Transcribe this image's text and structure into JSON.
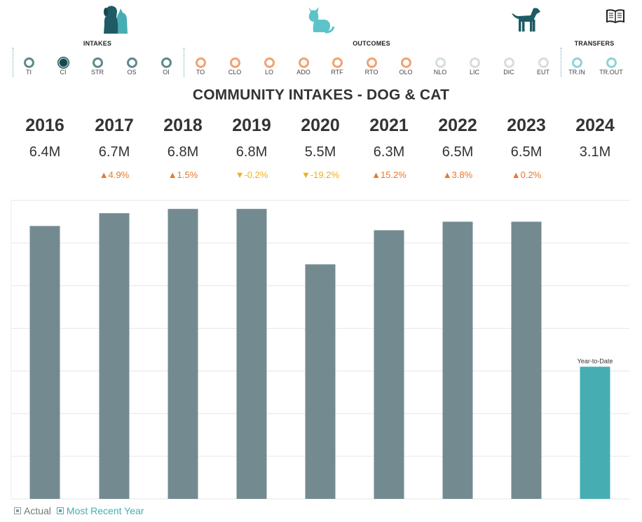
{
  "header": {
    "icons": [
      {
        "name": "dog-cat-icon"
      },
      {
        "name": "cat-icon"
      },
      {
        "name": "dog-icon"
      },
      {
        "name": "book-icon"
      }
    ],
    "sections": {
      "intakes": "INTAKES",
      "outcomes": "OUTCOMES",
      "transfers": "TRANSFERS"
    },
    "filters": [
      {
        "label": "TI",
        "group": "intakes",
        "selected": false
      },
      {
        "label": "CI",
        "group": "intakes",
        "selected": true
      },
      {
        "label": "STR",
        "group": "intakes",
        "selected": false
      },
      {
        "label": "OS",
        "group": "intakes",
        "selected": false
      },
      {
        "label": "OI",
        "group": "intakes",
        "selected": false
      },
      {
        "label": "TO",
        "group": "outcomes",
        "selected": false
      },
      {
        "label": "CLO",
        "group": "outcomes",
        "selected": false
      },
      {
        "label": "LO",
        "group": "outcomes",
        "selected": false
      },
      {
        "label": "ADO",
        "group": "outcomes",
        "selected": false
      },
      {
        "label": "RTF",
        "group": "outcomes",
        "selected": false
      },
      {
        "label": "RTO",
        "group": "outcomes",
        "selected": false
      },
      {
        "label": "OLO",
        "group": "outcomes",
        "selected": false
      },
      {
        "label": "NLO",
        "group": "outcomes-muted",
        "selected": false
      },
      {
        "label": "LIC",
        "group": "outcomes-muted",
        "selected": false
      },
      {
        "label": "DIC",
        "group": "outcomes-muted",
        "selected": false
      },
      {
        "label": "EUT",
        "group": "outcomes-muted",
        "selected": false
      },
      {
        "label": "TR.IN",
        "group": "transfers",
        "selected": false
      },
      {
        "label": "TR.OUT",
        "group": "transfers",
        "selected": false
      }
    ]
  },
  "colors": {
    "bar_actual": "#738b90",
    "bar_recent": "#46aeb3",
    "intake_ring": "#5e8a8c",
    "intake_selected": "#16474f",
    "outcome_ring": "#f2a26f",
    "muted_ring": "#d5dde0",
    "transfer_ring": "#8fd3d8",
    "up": "#e8782c",
    "down": "#eab21d",
    "grid": "#e6e6e6"
  },
  "title": "COMMUNITY INTAKES - DOG & CAT",
  "years": [
    {
      "year": "2016",
      "value": "6.4M",
      "change": ""
    },
    {
      "year": "2017",
      "value": "6.7M",
      "change": "4.9%"
    },
    {
      "year": "2018",
      "value": "6.8M",
      "change": "1.5%"
    },
    {
      "year": "2019",
      "value": "6.8M",
      "change": "-0.2%"
    },
    {
      "year": "2020",
      "value": "5.5M",
      "change": "-19.2%"
    },
    {
      "year": "2021",
      "value": "6.3M",
      "change": "15.2%"
    },
    {
      "year": "2022",
      "value": "6.5M",
      "change": "3.8%"
    },
    {
      "year": "2023",
      "value": "6.5M",
      "change": "0.2%"
    },
    {
      "year": "2024",
      "value": "3.1M",
      "change": ""
    }
  ],
  "chart_data": {
    "type": "bar",
    "title": "COMMUNITY INTAKES - DOG & CAT",
    "categories": [
      "2016",
      "2017",
      "2018",
      "2019",
      "2020",
      "2021",
      "2022",
      "2023",
      "2024"
    ],
    "values": [
      6.4,
      6.7,
      6.8,
      6.8,
      5.5,
      6.3,
      6.5,
      6.5,
      3.1
    ],
    "value_unit": "millions",
    "series_kind": [
      "Actual",
      "Actual",
      "Actual",
      "Actual",
      "Actual",
      "Actual",
      "Actual",
      "Actual",
      "Most Recent Year"
    ],
    "ylim": [
      0,
      7.0
    ],
    "gridlines": 7,
    "annotations": [
      {
        "category": "2024",
        "text": "Year-to-Date"
      }
    ],
    "xlabel": "",
    "ylabel": ""
  },
  "legend": [
    {
      "label": "Actual",
      "color_key": "bar_actual"
    },
    {
      "label": "Most Recent Year",
      "color_key": "bar_recent"
    }
  ]
}
